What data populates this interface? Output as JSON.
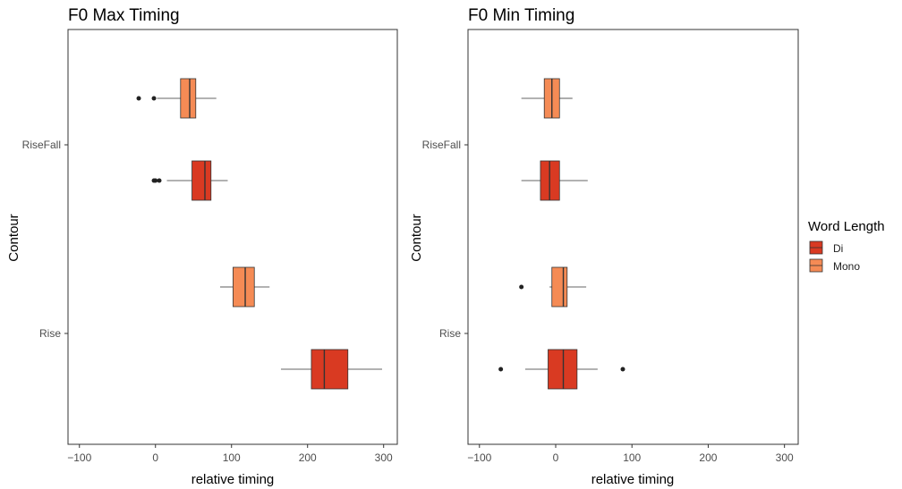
{
  "legend": {
    "title": "Word Length",
    "position": "right",
    "items": [
      {
        "label": "Di",
        "color": "#d93a22"
      },
      {
        "label": "Mono",
        "color": "#f58b55"
      }
    ]
  },
  "chart_data": [
    {
      "type": "boxplot",
      "title": "F0 Max Timing",
      "xlabel": "relative timing",
      "ylabel": "Contour",
      "xlim": [
        -115,
        318
      ],
      "xticks": [
        -100,
        0,
        100,
        200,
        300
      ],
      "xtick_labels": [
        "−100",
        "0",
        "100",
        "200",
        "300"
      ],
      "categories": [
        "RiseFall",
        "Rise"
      ],
      "grid": false,
      "series": [
        {
          "name": "Mono",
          "boxes": [
            {
              "category": "RiseFall",
              "whisker_low": 2,
              "q1": 33,
              "median": 45,
              "q3": 53,
              "whisker_high": 80,
              "outliers": [
                -22,
                -2
              ]
            },
            {
              "category": "Rise",
              "whisker_low": 85,
              "q1": 102,
              "median": 118,
              "q3": 130,
              "whisker_high": 150,
              "outliers": []
            }
          ]
        },
        {
          "name": "Di",
          "boxes": [
            {
              "category": "RiseFall",
              "whisker_low": 15,
              "q1": 48,
              "median": 65,
              "q3": 73,
              "whisker_high": 95,
              "outliers": [
                -2,
                0,
                5
              ]
            },
            {
              "category": "Rise",
              "whisker_low": 165,
              "q1": 205,
              "median": 222,
              "q3": 253,
              "whisker_high": 298,
              "outliers": []
            }
          ]
        }
      ]
    },
    {
      "type": "boxplot",
      "title": "F0 Min Timing",
      "xlabel": "relative timing",
      "ylabel": "Contour",
      "xlim": [
        -115,
        318
      ],
      "xticks": [
        -100,
        0,
        100,
        200,
        300
      ],
      "xtick_labels": [
        "−100",
        "0",
        "100",
        "200",
        "300"
      ],
      "categories": [
        "RiseFall",
        "Rise"
      ],
      "grid": false,
      "series": [
        {
          "name": "Mono",
          "boxes": [
            {
              "category": "RiseFall",
              "whisker_low": -45,
              "q1": -15,
              "median": -5,
              "q3": 5,
              "whisker_high": 22,
              "outliers": []
            },
            {
              "category": "Rise",
              "whisker_low": -8,
              "q1": -5,
              "median": 10,
              "q3": 15,
              "whisker_high": 40,
              "outliers": [
                -45
              ]
            }
          ]
        },
        {
          "name": "Di",
          "boxes": [
            {
              "category": "RiseFall",
              "whisker_low": -45,
              "q1": -20,
              "median": -8,
              "q3": 5,
              "whisker_high": 42,
              "outliers": []
            },
            {
              "category": "Rise",
              "whisker_low": -40,
              "q1": -10,
              "median": 10,
              "q3": 28,
              "whisker_high": 55,
              "outliers": [
                -72,
                88
              ]
            }
          ]
        }
      ]
    }
  ]
}
